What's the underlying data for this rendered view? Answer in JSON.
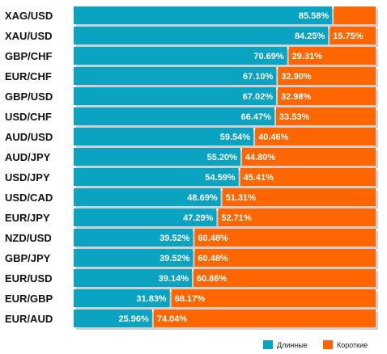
{
  "chart_data": {
    "type": "bar",
    "stacked": true,
    "orientation": "horizontal",
    "title": "",
    "xlabel": "",
    "ylabel": "",
    "xlim": [
      0,
      100
    ],
    "grid": false,
    "legend_position": "bottom-right",
    "colors": {
      "long": "#0aa3c2",
      "short": "#ff6600",
      "shadow": "#cfcfcf"
    },
    "categories": [
      "XAG/USD",
      "XAU/USD",
      "GBP/CHF",
      "EUR/CHF",
      "GBP/USD",
      "USD/CHF",
      "AUD/USD",
      "AUD/JPY",
      "USD/JPY",
      "USD/CAD",
      "EUR/JPY",
      "NZD/USD",
      "GBP/JPY",
      "EUR/USD",
      "EUR/GBP",
      "EUR/AUD"
    ],
    "series": [
      {
        "name": "Длинные",
        "key": "long",
        "values": [
          85.58,
          84.25,
          70.69,
          67.1,
          67.02,
          66.47,
          59.54,
          55.2,
          54.59,
          48.69,
          47.29,
          39.52,
          39.52,
          39.14,
          31.83,
          25.96
        ],
        "labels": [
          "85.58%",
          "84.25%",
          "70.69%",
          "67.10%",
          "67.02%",
          "66.47%",
          "59.54%",
          "55.20%",
          "54.59%",
          "48.69%",
          "47.29%",
          "39.52%",
          "39.52%",
          "39.14%",
          "31.83%",
          "25.96%"
        ]
      },
      {
        "name": "Короткие",
        "key": "short",
        "values": [
          14.42,
          15.75,
          29.31,
          32.9,
          32.98,
          33.53,
          40.46,
          44.8,
          45.41,
          51.31,
          52.71,
          60.48,
          60.48,
          60.86,
          68.17,
          74.04
        ],
        "labels": [
          "",
          "15.75%",
          "29.31%",
          "32.90%",
          "32.98%",
          "33.53%",
          "40.46%",
          "44.80%",
          "45.41%",
          "51.31%",
          "52.71%",
          "60.48%",
          "60.48%",
          "60.86%",
          "68.17%",
          "74.04%"
        ]
      }
    ]
  }
}
